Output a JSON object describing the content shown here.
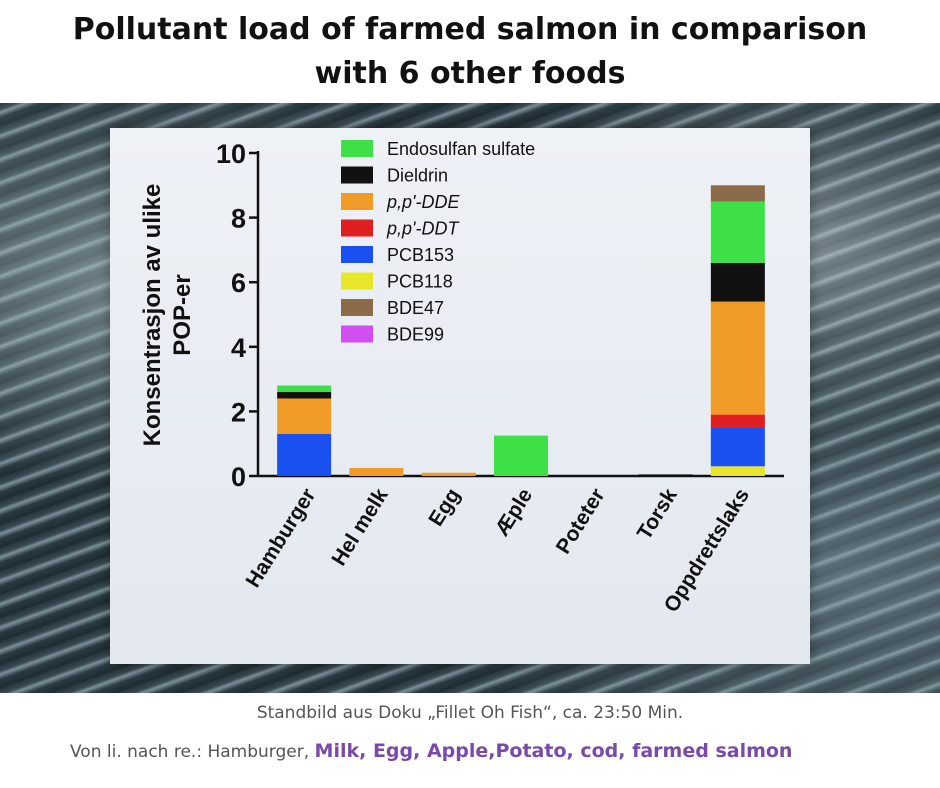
{
  "title": {
    "line1": "Pollutant load of farmed salmon in comparison",
    "line2": "with 6 other foods"
  },
  "caption": {
    "line1": "Standbild aus Doku „Fillet Oh Fish“, ca. 23:50 Min.",
    "line2_prefix": "Von li. nach re.: Hamburger, ",
    "line2_overlay": "Milk, Egg, Apple,Potato, cod, farmed salmon"
  },
  "chart_data": {
    "type": "bar",
    "stacked": true,
    "title": "",
    "xlabel": "",
    "ylabel": "Konsentrasjon av ulike POP-er",
    "ylabel_lines": [
      "Konsentrasjon av ulike",
      "POP-er"
    ],
    "ylim": [
      0,
      10
    ],
    "yticks": [
      0,
      2,
      4,
      6,
      8,
      10
    ],
    "grid": false,
    "legend_position": "top",
    "categories": [
      "Hamburger",
      "Hel melk",
      "Egg",
      "Æple",
      "Poteter",
      "Torsk",
      "Oppdrettslaks"
    ],
    "series": [
      {
        "name": "PCB118",
        "color": "#e8e628",
        "values": [
          0,
          0,
          0,
          0,
          0,
          0,
          0.3
        ]
      },
      {
        "name": "PCB153",
        "color": "#1a4ff0",
        "values": [
          1.3,
          0,
          0,
          0,
          0,
          0,
          1.2
        ]
      },
      {
        "name": "p,p'-DDT",
        "color": "#e02020",
        "values": [
          0,
          0,
          0,
          0,
          0,
          0,
          0.4
        ]
      },
      {
        "name": "p,p'-DDE",
        "color": "#f09a28",
        "values": [
          1.1,
          0.25,
          0.1,
          0,
          0,
          0,
          3.5
        ]
      },
      {
        "name": "Dieldrin",
        "color": "#111111",
        "values": [
          0.2,
          0,
          0,
          0,
          0,
          0.05,
          1.2
        ]
      },
      {
        "name": "Endosulfan sulfate",
        "color": "#3ee048",
        "values": [
          0.2,
          0,
          0,
          1.25,
          0,
          0,
          1.9
        ]
      },
      {
        "name": "BDE47",
        "color": "#8b6b4a",
        "values": [
          0,
          0,
          0,
          0,
          0,
          0,
          0.5
        ]
      },
      {
        "name": "BDE99",
        "color": "#d24ef0",
        "values": [
          0,
          0,
          0,
          0,
          0,
          0,
          0
        ]
      }
    ],
    "legend_order": [
      "Endosulfan sulfate",
      "Dieldrin",
      "p,p'-DDE",
      "p,p'-DDT",
      "PCB153",
      "PCB118",
      "BDE47",
      "BDE99"
    ],
    "legend_italic": [
      "p,p'-DDE",
      "p,p'-DDT"
    ]
  }
}
